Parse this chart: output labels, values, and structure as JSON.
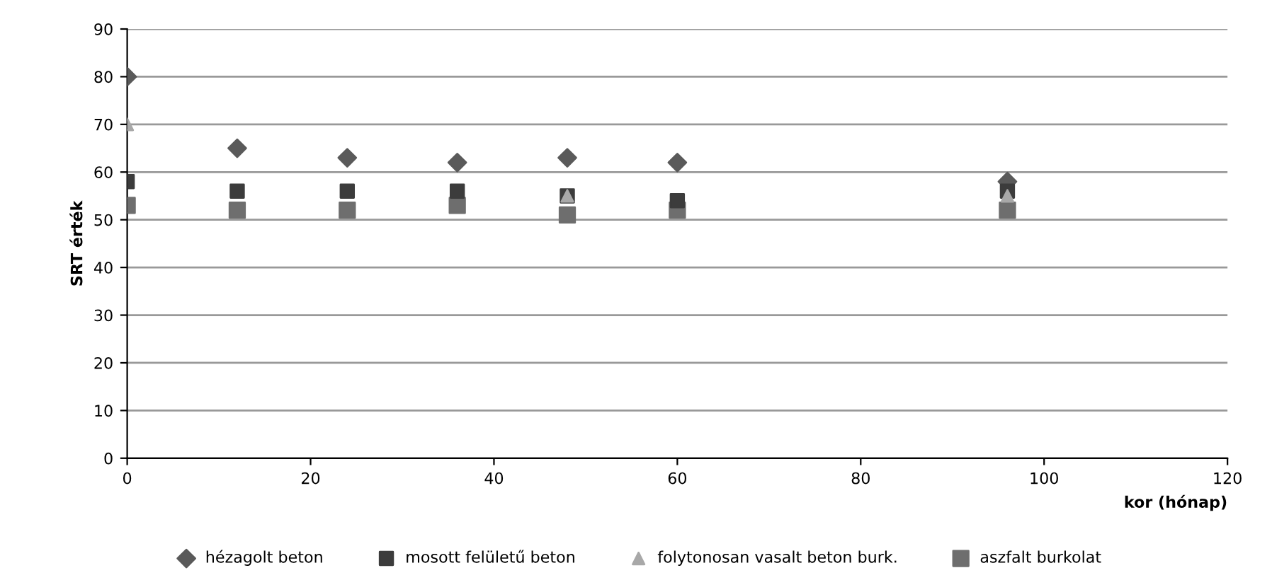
{
  "chart_data": {
    "type": "scatter",
    "xlabel": "kor (hónap)",
    "ylabel": "SRT érték",
    "xlim": [
      0,
      120
    ],
    "xticks": [
      0,
      20,
      40,
      60,
      80,
      100,
      120
    ],
    "ylim": [
      0,
      90
    ],
    "yticks": [
      0,
      10,
      20,
      30,
      40,
      50,
      60,
      70,
      80,
      90
    ],
    "grid": "y",
    "legend": "bottom",
    "series": [
      {
        "name": "hézagolt beton",
        "color": "#5a5a5a",
        "marker": "diamond",
        "x": [
          0,
          12,
          24,
          36,
          48,
          60,
          96
        ],
        "values": [
          80,
          65,
          63,
          62,
          63,
          62,
          58
        ]
      },
      {
        "name": "mosott felületű beton",
        "color": "#3c3c3c",
        "marker": "square",
        "x": [
          0,
          12,
          24,
          36,
          48,
          60,
          96
        ],
        "values": [
          58,
          56,
          56,
          56,
          55,
          54,
          56
        ]
      },
      {
        "name": "folytonosan vasalt beton burk.",
        "color": "#a8a8a8",
        "marker": "triangle",
        "x": [
          0,
          48,
          96
        ],
        "values": [
          70,
          55,
          55
        ]
      },
      {
        "name": "aszfalt burkolat",
        "color": "#6e6e6e",
        "marker": "square",
        "x": [
          0,
          12,
          24,
          36,
          48,
          60,
          96
        ],
        "values": [
          53,
          52,
          52,
          53,
          51,
          52,
          52
        ]
      }
    ]
  }
}
